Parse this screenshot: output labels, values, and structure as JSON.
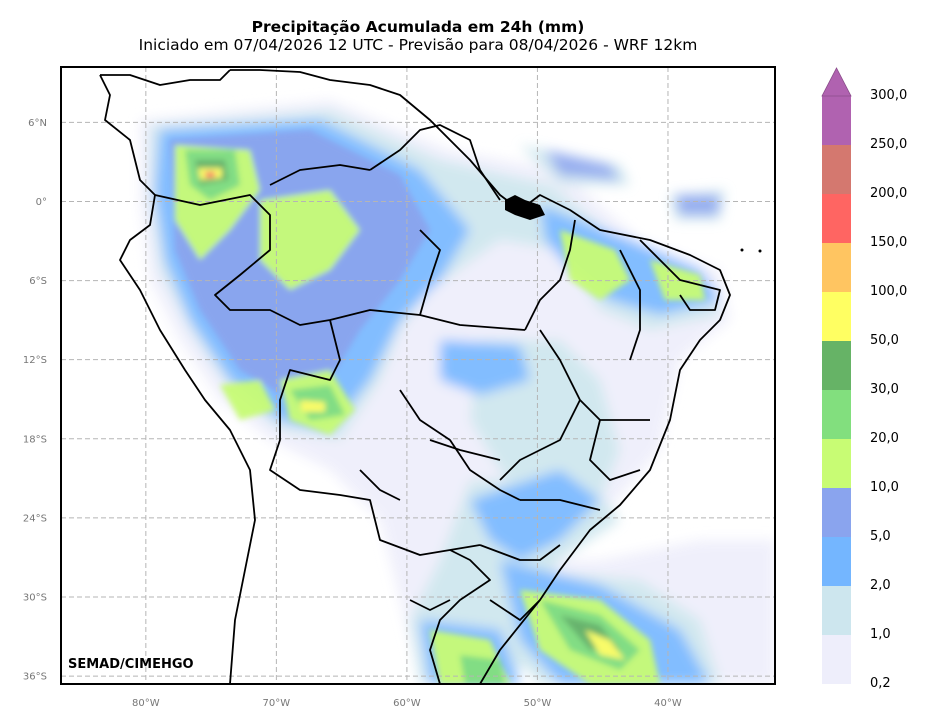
{
  "title": "Precipitação Acumulada em 24h (mm)",
  "subtitle": "Iniciado em 07/04/2026 12 UTC - Previsão para 08/04/2026 - WRF 12km",
  "credit": "SEMAD/CIMEHGO",
  "map": {
    "lon_range": [
      -86.5,
      -31.8
    ],
    "lat_range": [
      -36.6,
      10.2
    ],
    "lon_ticks": [
      {
        "value": -80,
        "label": "80°W"
      },
      {
        "value": -70,
        "label": "70°W"
      },
      {
        "value": -60,
        "label": "60°W"
      },
      {
        "value": -50,
        "label": "50°W"
      },
      {
        "value": -40,
        "label": "40°W"
      }
    ],
    "lat_ticks": [
      {
        "value": 6,
        "label": "6°N"
      },
      {
        "value": 0,
        "label": "0°"
      },
      {
        "value": -6,
        "label": "6°S"
      },
      {
        "value": -12,
        "label": "12°S"
      },
      {
        "value": -18,
        "label": "18°S"
      },
      {
        "value": -24,
        "label": "24°S"
      },
      {
        "value": -30,
        "label": "30°S"
      },
      {
        "value": -36,
        "label": "36°S"
      }
    ],
    "grid": true
  },
  "colorbar": {
    "levels": [
      {
        "label": "0,2",
        "color": "#eeeefb"
      },
      {
        "label": "1,0",
        "color": "#cde6ee"
      },
      {
        "label": "2,0",
        "color": "#74b6ff"
      },
      {
        "label": "5,0",
        "color": "#8aa4ee"
      },
      {
        "label": "10,0",
        "color": "#c8fc74"
      },
      {
        "label": "20,0",
        "color": "#82df7e"
      },
      {
        "label": "30,0",
        "color": "#66b366"
      },
      {
        "label": "50,0",
        "color": "#ffff62"
      },
      {
        "label": "100,0",
        "color": "#ffc561"
      },
      {
        "label": "150,0",
        "color": "#ff6562"
      },
      {
        "label": "200,0",
        "color": "#d4786f"
      },
      {
        "label": "250,0",
        "color": "#b062b0"
      },
      {
        "label": "300,0",
        "color": "#b062b0"
      }
    ]
  }
}
